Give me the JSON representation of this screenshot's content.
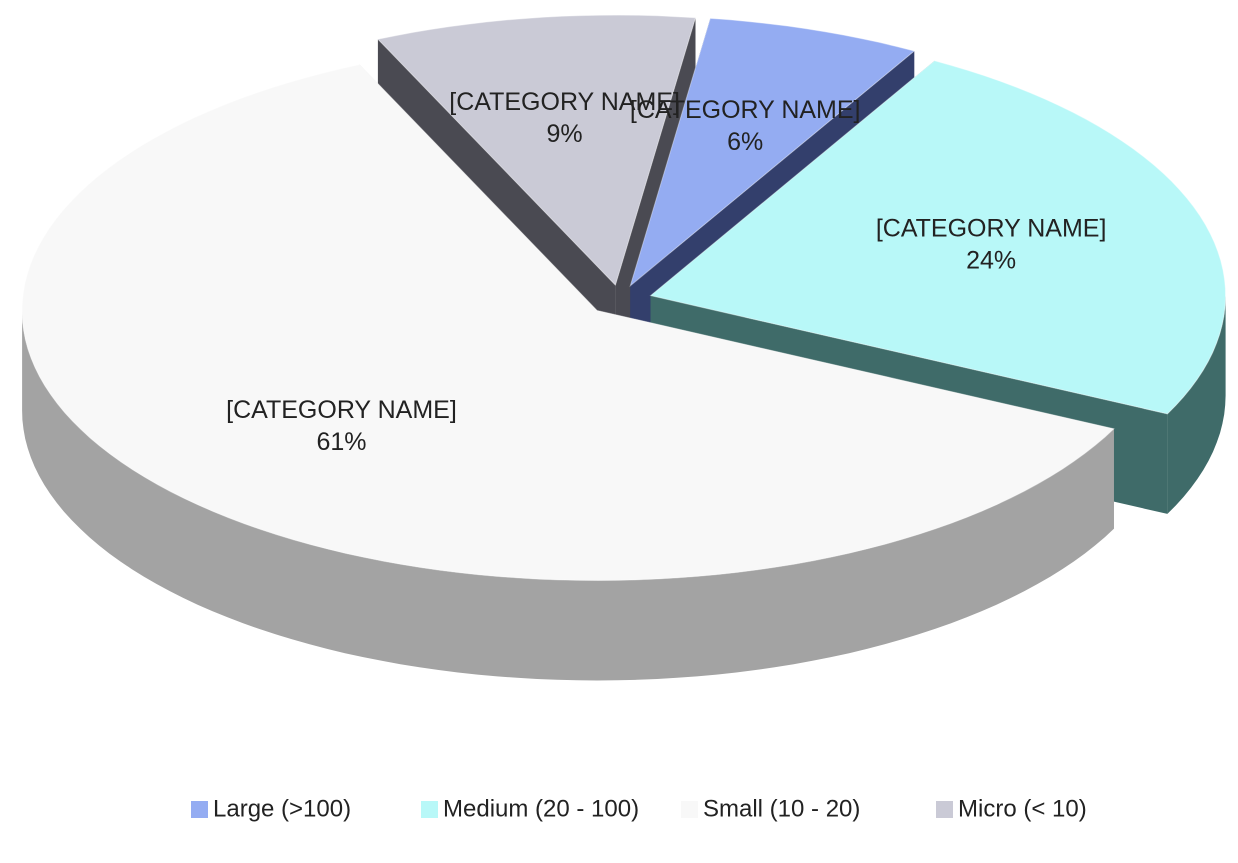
{
  "chart_data": {
    "type": "pie",
    "three_d": true,
    "exploded": true,
    "categories": [
      "Large (>100)",
      "Medium (20 - 100)",
      "Small (10 - 20)",
      "Micro (< 10)"
    ],
    "values": [
      6,
      24,
      61,
      9
    ],
    "value_labels": [
      "6%",
      "24%",
      "61%",
      "9%"
    ],
    "label_names": [
      "[CATEGORY NAME]",
      "[CATEGORY NAME]",
      "[CATEGORY NAME]",
      "[CATEGORY NAME]"
    ],
    "colors": [
      "#94acf2",
      "#b8f8f8",
      "#f8f8f8",
      "#cacad6"
    ],
    "side_colors": [
      "#333f6c",
      "#3f6b69",
      "#a3a3a3",
      "#4a4a52"
    ],
    "legend": "bottom"
  }
}
